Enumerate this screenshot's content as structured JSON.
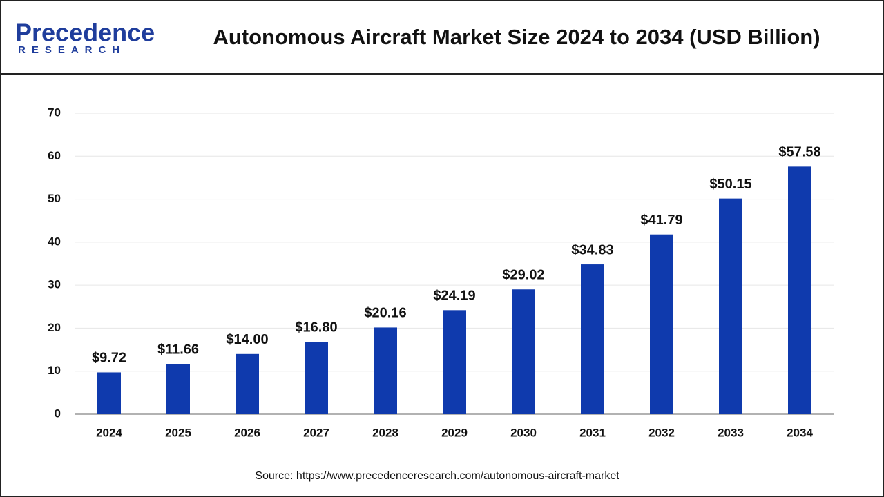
{
  "logo": {
    "name": "Precedence",
    "tagline": "RESEARCH"
  },
  "chart_data": {
    "type": "bar",
    "title": "Autonomous Aircraft Market Size 2024 to 2034 (USD Billion)",
    "categories": [
      "2024",
      "2025",
      "2026",
      "2027",
      "2028",
      "2029",
      "2030",
      "2031",
      "2032",
      "2033",
      "2034"
    ],
    "values": [
      9.72,
      11.66,
      14.0,
      16.8,
      20.16,
      24.19,
      29.02,
      34.83,
      41.79,
      50.15,
      57.58
    ],
    "value_labels": [
      "$9.72",
      "$11.66",
      "$14.00",
      "$16.80",
      "$20.16",
      "$24.19",
      "$29.02",
      "$34.83",
      "$41.79",
      "$50.15",
      "$57.58"
    ],
    "color": "#0f3aad",
    "ylim": [
      0,
      70
    ],
    "yticks": [
      0,
      10,
      20,
      30,
      40,
      50,
      60,
      70
    ],
    "grid": true,
    "source": "Source: https://www.precedenceresearch.com/autonomous-aircraft-market"
  }
}
